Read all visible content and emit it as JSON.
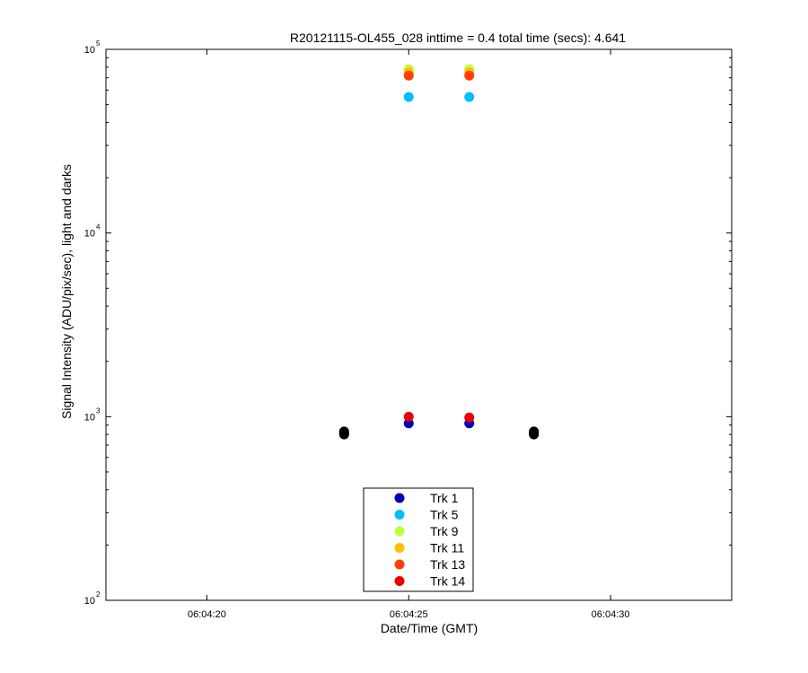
{
  "chart_data": {
    "type": "scatter",
    "title": "R20121115-OL455_028 inttime = 0.4 total time (secs): 4.641",
    "xlabel": "Date/Time (GMT)",
    "ylabel": "Signal Intensity (ADU/pix/sec), light and darks",
    "y_scale": "log",
    "ylim": [
      100,
      100000
    ],
    "y_ticks": [
      {
        "base": "10",
        "exp": "2",
        "value": 100
      },
      {
        "base": "10",
        "exp": "3",
        "value": 1000
      },
      {
        "base": "10",
        "exp": "4",
        "value": 10000
      },
      {
        "base": "10",
        "exp": "5",
        "value": 100000
      }
    ],
    "xlim": [
      "06:04:17.5",
      "06:04:33.0"
    ],
    "x_ticks": [
      "06:04:20",
      "06:04:25",
      "06:04:30"
    ],
    "grid": false,
    "legend_position": "bottom-center",
    "series": [
      {
        "name": "Trk 1",
        "color": "#0000b4",
        "points": [
          [
            "06:04:25.0",
            920
          ],
          [
            "06:04:26.5",
            920
          ]
        ]
      },
      {
        "name": "Trk 5",
        "color": "#00bfff",
        "points": [
          [
            "06:04:25.0",
            55000
          ],
          [
            "06:04:26.5",
            55000
          ]
        ]
      },
      {
        "name": "Trk 9",
        "color": "#bfff3f",
        "points": [
          [
            "06:04:25.0",
            78000
          ],
          [
            "06:04:26.5",
            78000
          ]
        ]
      },
      {
        "name": "Trk 11",
        "color": "#ffbf00",
        "points": [
          [
            "06:04:25.0",
            75000
          ],
          [
            "06:04:26.5",
            75000
          ]
        ]
      },
      {
        "name": "Trk 13",
        "color": "#ff4000",
        "points": [
          [
            "06:04:25.0",
            72000
          ],
          [
            "06:04:26.5",
            72000
          ]
        ]
      },
      {
        "name": "Trk 14",
        "color": "#ee0000",
        "points": [
          [
            "06:04:25.0",
            1000
          ],
          [
            "06:04:26.5",
            990
          ]
        ]
      }
    ],
    "darks": {
      "color": "#000000",
      "points": [
        [
          "06:04:23.4",
          830
        ],
        [
          "06:04:23.4",
          815
        ],
        [
          "06:04:23.4",
          800
        ],
        [
          "06:04:28.1",
          830
        ],
        [
          "06:04:28.1",
          815
        ],
        [
          "06:04:28.1",
          800
        ]
      ]
    }
  }
}
